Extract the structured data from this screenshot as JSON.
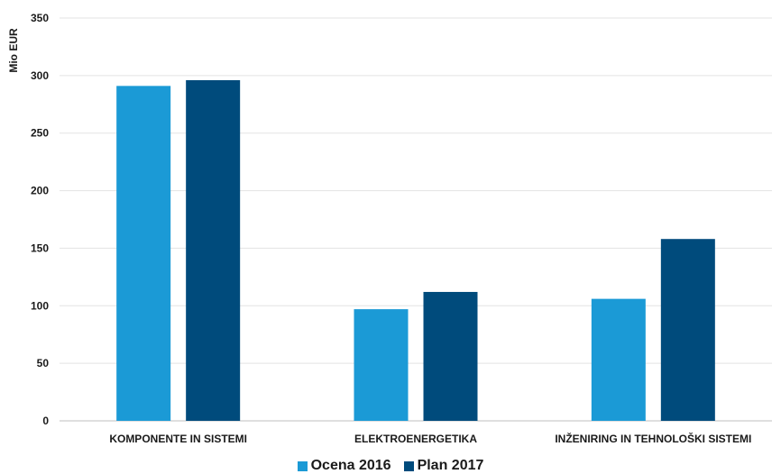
{
  "chart_data": {
    "type": "bar",
    "ylabel": "Mio EUR",
    "ylim": [
      0,
      350
    ],
    "yticks": [
      "0",
      "50",
      "100",
      "150",
      "200",
      "250",
      "300",
      "350"
    ],
    "grid": true,
    "legend_position": "bottom",
    "categories": [
      "KOMPONENTE IN SISTEMI",
      "ELEKTROENERGETIKA",
      "INŽENIRING IN TEHNOLOŠKI SISTEMI"
    ],
    "series": [
      {
        "name": "Ocena 2016",
        "color": "#1b9ad6",
        "values": [
          291,
          97,
          106
        ]
      },
      {
        "name": "Plan 2017",
        "color": "#004b7c",
        "values": [
          296,
          112,
          158
        ]
      }
    ]
  }
}
